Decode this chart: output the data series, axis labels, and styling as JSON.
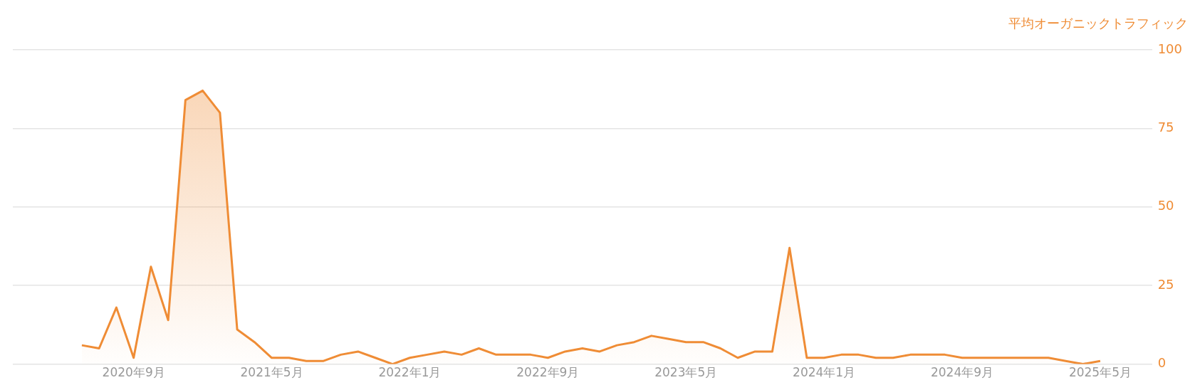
{
  "chart_data": {
    "type": "area",
    "ylabel": "平均オーガニックトラフィック",
    "x": [
      "2020-06",
      "2020-07",
      "2020-08",
      "2020-09",
      "2020-10",
      "2020-11",
      "2020-12",
      "2021-01",
      "2021-02",
      "2021-03",
      "2021-04",
      "2021-05",
      "2021-06",
      "2021-07",
      "2021-08",
      "2021-09",
      "2021-10",
      "2021-11",
      "2021-12",
      "2022-01",
      "2022-02",
      "2022-03",
      "2022-04",
      "2022-05",
      "2022-06",
      "2022-07",
      "2022-08",
      "2022-09",
      "2022-10",
      "2022-11",
      "2022-12",
      "2023-01",
      "2023-02",
      "2023-03",
      "2023-04",
      "2023-05",
      "2023-06",
      "2023-07",
      "2023-08",
      "2023-09",
      "2023-10",
      "2023-11",
      "2023-12",
      "2024-01",
      "2024-02",
      "2024-03",
      "2024-04",
      "2024-05",
      "2024-06",
      "2024-07",
      "2024-08",
      "2024-09",
      "2024-10",
      "2024-11",
      "2024-12",
      "2025-01",
      "2025-02",
      "2025-03",
      "2025-04",
      "2025-05"
    ],
    "series": [
      {
        "color": "#ef8c35",
        "values": [
          6,
          5,
          18,
          2,
          31,
          14,
          84,
          87,
          80,
          11,
          7,
          2,
          2,
          1,
          1,
          3,
          4,
          2,
          0,
          2,
          3,
          4,
          3,
          5,
          3,
          3,
          3,
          2,
          4,
          5,
          4,
          6,
          7,
          9,
          8,
          7,
          7,
          5,
          2,
          4,
          4,
          37,
          2,
          2,
          3,
          3,
          2,
          2,
          3,
          3,
          3,
          2,
          2,
          2,
          2,
          2,
          2,
          1,
          0,
          1
        ]
      }
    ],
    "xlim": [
      "2020-02",
      "2025-08"
    ],
    "xticks": [
      {
        "value": "2020-09",
        "label": "2020年9月"
      },
      {
        "value": "2021-05",
        "label": "2021年5月"
      },
      {
        "value": "2022-01",
        "label": "2022年1月"
      },
      {
        "value": "2022-09",
        "label": "2022年9月"
      },
      {
        "value": "2023-05",
        "label": "2023年5月"
      },
      {
        "value": "2024-01",
        "label": "2024年1月"
      },
      {
        "value": "2024-09",
        "label": "2024年9月"
      },
      {
        "value": "2025-05",
        "label": "2025年5月"
      }
    ],
    "ylim": [
      0,
      100
    ],
    "yticks": [
      0,
      25,
      50,
      75,
      100
    ],
    "grid": "y",
    "legend": false,
    "marker": "none"
  }
}
